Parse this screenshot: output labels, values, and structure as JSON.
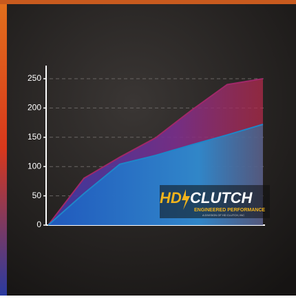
{
  "chart_data": {
    "type": "area",
    "categories": [
      null,
      null,
      null,
      null,
      null,
      null,
      null
    ],
    "series": [
      {
        "name": null,
        "color": "#a02868",
        "values": [
          0,
          80,
          116,
          149,
          196,
          240,
          250
        ]
      },
      {
        "name": null,
        "color": "#1f86c8",
        "values": [
          0,
          54,
          104,
          119,
          137,
          154,
          172
        ]
      }
    ],
    "ylim": [
      0,
      250
    ],
    "yticks": [
      0,
      50,
      100,
      150,
      200,
      250
    ],
    "grid": true
  },
  "logo": {
    "brand_left": "HD",
    "brand_right": "CLUTCH",
    "tagline": "ENGINEERED PERFORMANCE",
    "subline": "A DIVISION OF HD CLUTCH, INC"
  }
}
